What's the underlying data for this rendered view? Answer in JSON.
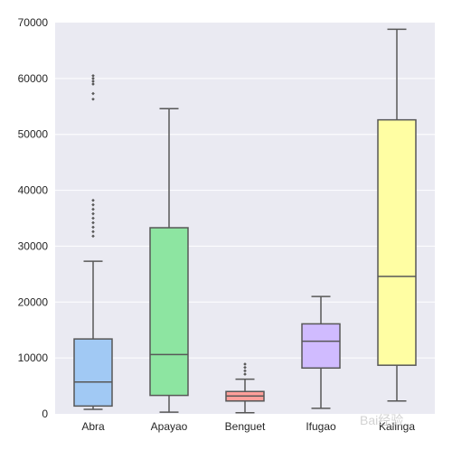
{
  "chart_data": {
    "type": "box",
    "categories": [
      "Abra",
      "Apayao",
      "Benguet",
      "Ifugao",
      "Kalinga"
    ],
    "ylim": [
      0,
      70000
    ],
    "yticks": [
      0,
      10000,
      20000,
      30000,
      40000,
      50000,
      60000,
      70000
    ],
    "grid": true,
    "boxes": [
      {
        "category": "Abra",
        "min": 800,
        "q1": 1400,
        "median": 5700,
        "q3": 13400,
        "max": 27300,
        "outliers": [
          31800,
          32600,
          33400,
          34200,
          35000,
          35800,
          36600,
          37400,
          38200,
          56300,
          57300,
          59000,
          59500,
          60000,
          60500
        ],
        "color": "#a1c9f4"
      },
      {
        "category": "Apayao",
        "min": 300,
        "q1": 3300,
        "median": 10600,
        "q3": 33300,
        "max": 54600,
        "outliers": [],
        "color": "#8de5a1"
      },
      {
        "category": "Benguet",
        "min": 200,
        "q1": 2300,
        "median": 3200,
        "q3": 4000,
        "max": 6200,
        "outliers": [
          7100,
          7700,
          8300,
          8900
        ],
        "color": "#ff9f9b"
      },
      {
        "category": "Ifugao",
        "min": 1000,
        "q1": 8200,
        "median": 13000,
        "q3": 16100,
        "max": 21000,
        "outliers": [],
        "color": "#d0bbff"
      },
      {
        "category": "Kalinga",
        "min": 2300,
        "q1": 8700,
        "median": 24600,
        "q3": 52600,
        "max": 68800,
        "outliers": [],
        "color": "#fffea3"
      }
    ]
  },
  "colors": {
    "plot_background": "#eaeaf2",
    "gridline": "#ffffff",
    "line": "#575757",
    "text": "#262626"
  },
  "watermark": {
    "text": "Bai经验"
  }
}
